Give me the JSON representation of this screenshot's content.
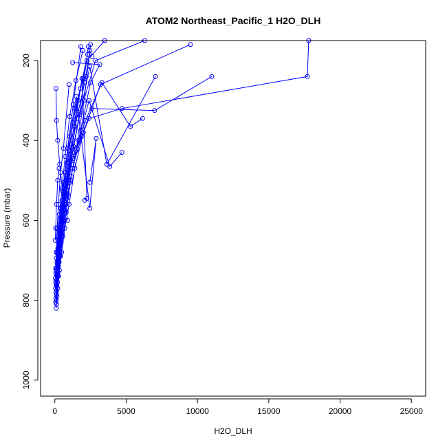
{
  "chart_data": {
    "type": "line",
    "title": "ATOM2 Northeast_Pacific_1 H2O_DLH",
    "xlabel": "H2O_DLH",
    "ylabel": "Pressure (mbar)",
    "xlim": [
      -1000,
      26000
    ],
    "ylim": [
      1040,
      150
    ],
    "y_reversed": true,
    "grid": false,
    "marker": "open-circle",
    "x_ticks": [
      0,
      5000,
      10000,
      15000,
      20000,
      25000
    ],
    "x_tick_labels": [
      "0",
      "5000",
      "10000",
      "15000",
      "20000",
      "25000"
    ],
    "y_ticks": [
      200,
      400,
      600,
      800,
      1000
    ],
    "y_tick_labels": [
      "200",
      "400",
      "600",
      "800",
      "1000"
    ],
    "series_color": "#0000ff",
    "series": [
      {
        "x": [
          90,
          150,
          260,
          400,
          560,
          800,
          1100,
          1500,
          2050,
          2500
        ],
        "y": [
          820,
          790,
          740,
          690,
          640,
          580,
          500,
          420,
          300,
          160
        ]
      },
      {
        "x": [
          120,
          200,
          320,
          480,
          700,
          1000,
          1400,
          2000,
          3200,
          9500
        ],
        "y": [
          810,
          770,
          725,
          680,
          620,
          560,
          470,
          380,
          260,
          160
        ]
      },
      {
        "x": [
          60,
          130,
          230,
          360,
          540,
          780,
          1250,
          2400,
          4700,
          17700,
          17800
        ],
        "y": [
          805,
          760,
          715,
          665,
          605,
          540,
          445,
          345,
          320,
          240,
          150
        ]
      },
      {
        "x": [
          100,
          190,
          300,
          450,
          650,
          900,
          1300,
          1900,
          2600,
          7000,
          11000
        ],
        "y": [
          800,
          755,
          705,
          655,
          600,
          535,
          460,
          390,
          320,
          325,
          240
        ]
      },
      {
        "x": [
          70,
          140,
          240,
          370,
          560,
          820,
          1200,
          1750,
          2850,
          6300
        ],
        "y": [
          795,
          750,
          700,
          650,
          595,
          525,
          440,
          335,
          200,
          150
        ]
      },
      {
        "x": [
          110,
          210,
          340,
          510,
          740,
          1050,
          1500,
          2150,
          3300,
          5300,
          6150
        ],
        "y": [
          785,
          740,
          690,
          635,
          575,
          505,
          425,
          350,
          255,
          365,
          345
        ]
      },
      {
        "x": [
          80,
          170,
          280,
          430,
          630,
          900,
          1300,
          2450,
          3650,
          7050
        ],
        "y": [
          780,
          735,
          685,
          630,
          565,
          495,
          415,
          215,
          460,
          240
        ]
      },
      {
        "x": [
          130,
          230,
          360,
          540,
          790,
          1150,
          1650,
          2400,
          3850,
          4700
        ],
        "y": [
          775,
          730,
          680,
          620,
          560,
          490,
          400,
          300,
          465,
          430
        ]
      },
      {
        "x": [
          50,
          120,
          210,
          330,
          500,
          730,
          1050,
          1500,
          2450,
          2900,
          2450
        ],
        "y": [
          770,
          720,
          670,
          610,
          550,
          480,
          390,
          290,
          570,
          395,
          505
        ]
      },
      {
        "x": [
          140,
          250,
          390,
          580,
          850,
          1250,
          1800,
          2500,
          3150,
          1250
        ],
        "y": [
          765,
          715,
          660,
          605,
          545,
          470,
          375,
          255,
          210,
          205
        ]
      },
      {
        "x": [
          90,
          180,
          300,
          460,
          680,
          980,
          1400,
          1900,
          2250,
          2100
        ],
        "y": [
          760,
          710,
          655,
          600,
          540,
          465,
          365,
          245,
          545,
          550
        ]
      },
      {
        "x": [
          60,
          150,
          260,
          410,
          610,
          880,
          1260,
          1780,
          2300
        ],
        "y": [
          755,
          705,
          650,
          595,
          535,
          455,
          355,
          270,
          185
        ]
      },
      {
        "x": [
          120,
          220,
          350,
          520,
          760,
          1080,
          1530,
          2100,
          2450,
          2600
        ],
        "y": [
          750,
          700,
          645,
          590,
          530,
          450,
          345,
          255,
          175,
          190
        ]
      },
      {
        "x": [
          40,
          110,
          200,
          320,
          490,
          720,
          1040,
          1480,
          1960
        ],
        "y": [
          745,
          695,
          640,
          585,
          525,
          440,
          340,
          250,
          175
        ]
      },
      {
        "x": [
          150,
          260,
          400,
          590,
          860,
          1230,
          1750,
          2350
        ],
        "y": [
          740,
          690,
          635,
          580,
          515,
          430,
          330,
          165
        ]
      },
      {
        "x": [
          100,
          200,
          320,
          480,
          700,
          1000,
          1420,
          1980,
          2200
        ],
        "y": [
          735,
          685,
          630,
          575,
          510,
          425,
          320,
          245,
          240
        ]
      },
      {
        "x": [
          70,
          160,
          270,
          420,
          620,
          900,
          1290,
          1820
        ],
        "y": [
          730,
          680,
          625,
          570,
          505,
          420,
          310,
          165
        ]
      },
      {
        "x": [
          130,
          240,
          370,
          550,
          800,
          1140,
          1620,
          2250,
          3500
        ],
        "y": [
          725,
          675,
          620,
          565,
          500,
          410,
          300,
          200,
          150
        ]
      },
      {
        "x": [
          30,
          60,
          120,
          200,
          300
        ],
        "y": [
          650,
          620,
          560,
          500,
          470
        ]
      },
      {
        "x": [
          60,
          100,
          160,
          250,
          400,
          600,
          1000
        ],
        "y": [
          720,
          680,
          620,
          560,
          480,
          420,
          260
        ]
      },
      {
        "x": [
          80,
          120,
          200,
          340,
          520,
          900
        ],
        "y": [
          270,
          350,
          400,
          460,
          520,
          600
        ]
      }
    ]
  }
}
